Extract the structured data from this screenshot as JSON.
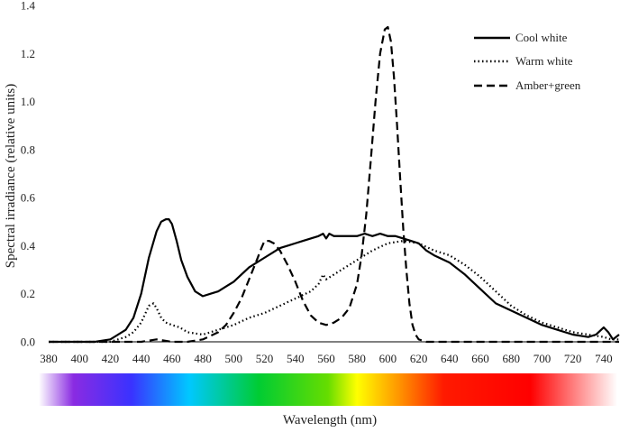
{
  "chart_data": {
    "type": "line",
    "title": "",
    "xlabel": "Wavelength (nm)",
    "ylabel": "Spectral irradiance (relative units)",
    "xlim": [
      380,
      750
    ],
    "ylim": [
      0,
      1.4
    ],
    "x_ticks": [
      380,
      400,
      420,
      440,
      460,
      480,
      500,
      520,
      540,
      560,
      580,
      600,
      620,
      640,
      660,
      680,
      700,
      720,
      740
    ],
    "y_ticks": [
      0.0,
      0.2,
      0.4,
      0.6,
      0.8,
      1.0,
      1.2,
      1.4
    ],
    "x_tick_labels": [
      "380",
      "400",
      "420",
      "440",
      "460",
      "480",
      "500",
      "520",
      "540",
      "560",
      "580",
      "600",
      "620",
      "640",
      "660",
      "680",
      "700",
      "720",
      "740"
    ],
    "y_tick_labels": [
      "0.0",
      "0.2",
      "0.4",
      "0.6",
      "0.8",
      "1.0",
      "1.2",
      "1.4"
    ],
    "grid": false,
    "legend_position": "top-right",
    "spectrum_bar": true,
    "series": [
      {
        "name": "Cool white",
        "style": "solid",
        "x": [
          380,
          400,
          410,
          420,
          430,
          435,
          440,
          445,
          450,
          453,
          456,
          458,
          460,
          463,
          466,
          470,
          475,
          480,
          485,
          490,
          495,
          500,
          505,
          510,
          515,
          520,
          525,
          530,
          535,
          540,
          545,
          550,
          555,
          558,
          560,
          562,
          565,
          570,
          575,
          580,
          585,
          590,
          595,
          600,
          605,
          610,
          615,
          620,
          625,
          630,
          640,
          650,
          660,
          670,
          680,
          690,
          700,
          710,
          720,
          730,
          735,
          740,
          743,
          746,
          750
        ],
        "y": [
          0.0,
          0.0,
          0.0,
          0.01,
          0.05,
          0.1,
          0.2,
          0.35,
          0.46,
          0.5,
          0.51,
          0.51,
          0.49,
          0.42,
          0.34,
          0.27,
          0.21,
          0.19,
          0.2,
          0.21,
          0.23,
          0.25,
          0.28,
          0.31,
          0.33,
          0.35,
          0.37,
          0.39,
          0.4,
          0.41,
          0.42,
          0.43,
          0.44,
          0.45,
          0.43,
          0.45,
          0.44,
          0.44,
          0.44,
          0.44,
          0.45,
          0.44,
          0.45,
          0.44,
          0.44,
          0.43,
          0.42,
          0.41,
          0.38,
          0.36,
          0.33,
          0.28,
          0.22,
          0.16,
          0.13,
          0.1,
          0.07,
          0.05,
          0.03,
          0.02,
          0.03,
          0.06,
          0.04,
          0.01,
          0.03
        ]
      },
      {
        "name": "Warm white",
        "style": "dotted",
        "x": [
          380,
          400,
          420,
          430,
          435,
          440,
          445,
          448,
          450,
          453,
          456,
          460,
          465,
          470,
          480,
          490,
          500,
          510,
          520,
          530,
          540,
          550,
          555,
          558,
          560,
          565,
          570,
          580,
          590,
          600,
          610,
          620,
          630,
          640,
          650,
          660,
          670,
          680,
          690,
          700,
          710,
          720,
          730,
          740,
          745,
          750
        ],
        "y": [
          0.0,
          0.0,
          0.0,
          0.02,
          0.04,
          0.08,
          0.15,
          0.16,
          0.14,
          0.1,
          0.08,
          0.07,
          0.06,
          0.04,
          0.03,
          0.05,
          0.07,
          0.1,
          0.12,
          0.15,
          0.18,
          0.21,
          0.24,
          0.28,
          0.26,
          0.28,
          0.3,
          0.34,
          0.38,
          0.41,
          0.42,
          0.41,
          0.38,
          0.36,
          0.32,
          0.27,
          0.21,
          0.15,
          0.11,
          0.08,
          0.06,
          0.04,
          0.03,
          0.02,
          0.01,
          0.01
        ]
      },
      {
        "name": "Amber+green",
        "style": "dashed",
        "x": [
          380,
          440,
          450,
          460,
          470,
          480,
          490,
          495,
          500,
          505,
          510,
          515,
          518,
          520,
          523,
          526,
          530,
          535,
          540,
          545,
          550,
          555,
          560,
          565,
          570,
          575,
          580,
          583,
          586,
          589,
          592,
          595,
          598,
          600,
          602,
          604,
          606,
          608,
          610,
          612,
          614,
          616,
          618,
          620,
          625,
          640,
          660,
          700,
          750
        ],
        "y": [
          0.0,
          0.0,
          0.01,
          0.0,
          0.0,
          0.01,
          0.04,
          0.07,
          0.12,
          0.18,
          0.26,
          0.34,
          0.39,
          0.42,
          0.42,
          0.41,
          0.38,
          0.32,
          0.25,
          0.17,
          0.11,
          0.08,
          0.07,
          0.08,
          0.1,
          0.14,
          0.24,
          0.36,
          0.53,
          0.76,
          1.0,
          1.2,
          1.3,
          1.31,
          1.25,
          1.1,
          0.9,
          0.68,
          0.47,
          0.3,
          0.16,
          0.07,
          0.03,
          0.01,
          0.0,
          0.0,
          0.0,
          0.0,
          0.0
        ]
      }
    ]
  }
}
